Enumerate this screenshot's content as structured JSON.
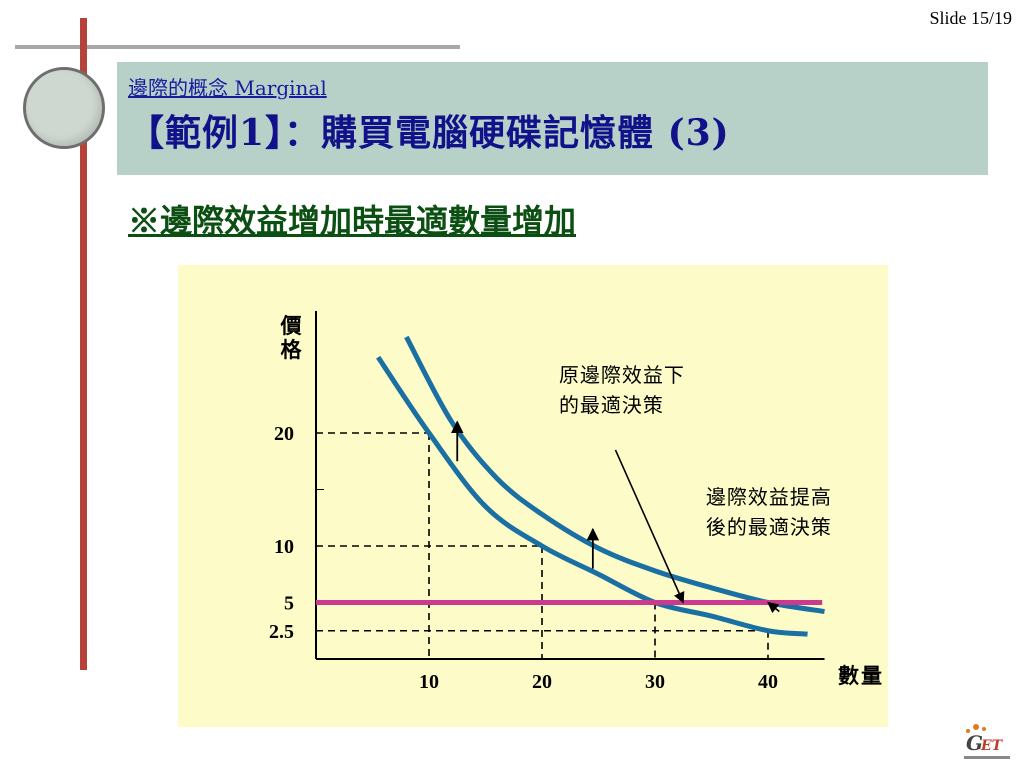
{
  "slide_number": "Slide 15/19",
  "header": {
    "subtitle": "邊際的概念 Marginal",
    "title": "【範例1】：購買電腦硬碟記憶體 (3)"
  },
  "headline": "※邊際效益增加時最適數量增加",
  "colors": {
    "title_bg": "#b7d1c9",
    "chart_bg": "#fdfcc8",
    "curve": "#1a6fa3",
    "price_line": "#cc3a90",
    "accent_bar": "#b5433c"
  },
  "chart_data": {
    "type": "line",
    "ylabel": "價格",
    "xlabel": "數量",
    "x_ticks": [
      10,
      20,
      30,
      40
    ],
    "y_ticks": [
      20,
      10,
      5,
      2.5
    ],
    "xlim": [
      0,
      45
    ],
    "ylim": [
      0,
      30
    ],
    "series": [
      {
        "x": [
          5.5,
          10,
          15,
          20,
          25,
          30,
          35,
          40,
          43.5
        ],
        "y": [
          26.7,
          20,
          13.5,
          10,
          7.5,
          5,
          3.8,
          2.5,
          2.2
        ]
      },
      {
        "x": [
          8,
          12,
          16,
          20,
          25,
          30,
          35,
          40,
          45
        ],
        "y": [
          28.5,
          21,
          16,
          12.8,
          9.8,
          7.8,
          6.3,
          5,
          4.2
        ]
      }
    ],
    "horizontal_line": {
      "y": 5,
      "x": [
        0,
        44.8
      ]
    },
    "guides": [
      {
        "x": 10,
        "y": 20
      },
      {
        "x": 20,
        "y": 10
      },
      {
        "x": 30,
        "y": 5
      },
      {
        "x": 40,
        "y": 2.5
      }
    ],
    "shift_arrows": [
      {
        "x": 12.5,
        "y_from": 17.5,
        "y_to": 21
      },
      {
        "x": 24.5,
        "y_from": 8,
        "y_to": 11.5
      }
    ],
    "annotations": [
      {
        "lines": [
          "原邊際效益下",
          "的最適決策"
        ],
        "text_x": 21.5,
        "text_y": 24.5,
        "arrow_from": [
          26.5,
          18.5
        ],
        "arrow_to": [
          32.5,
          5
        ]
      },
      {
        "lines": [
          "邊際效益提高",
          "後的最適決策"
        ],
        "text_x": 34.5,
        "text_y": 13.7,
        "arrow_from": [
          41,
          4.2
        ],
        "arrow_to": [
          40,
          5
        ]
      }
    ]
  }
}
